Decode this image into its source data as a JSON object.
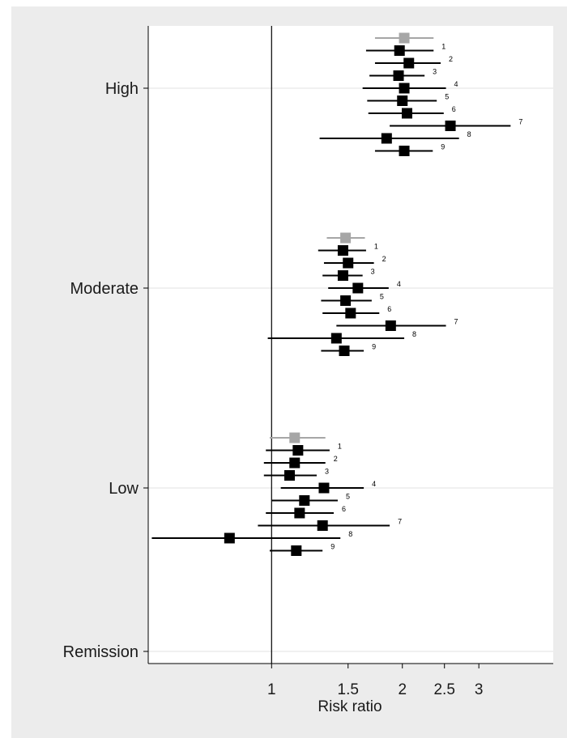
{
  "chart_data": {
    "type": "forest",
    "xlabel": "Risk ratio",
    "x_scale": "log",
    "xlim": [
      0.52,
      4.45
    ],
    "reference_line": 1,
    "x_ticks": [
      {
        "value": 1,
        "label": "1"
      },
      {
        "value": 1.5,
        "label": "1.5"
      },
      {
        "value": 2,
        "label": "2"
      },
      {
        "value": 2.5,
        "label": "2.5"
      },
      {
        "value": 3,
        "label": "3"
      }
    ],
    "categories": [
      "High",
      "Moderate",
      "Low",
      "Remission"
    ],
    "colors": {
      "pooled": "#a6a6a6",
      "study": "#000000"
    },
    "groups": [
      {
        "category": "High",
        "pooled": {
          "est": 2.02,
          "lo": 1.73,
          "hi": 2.36
        },
        "studies": [
          {
            "label": "1",
            "est": 1.97,
            "lo": 1.65,
            "hi": 2.36
          },
          {
            "label": "2",
            "est": 2.07,
            "lo": 1.73,
            "hi": 2.45
          },
          {
            "label": "3",
            "est": 1.96,
            "lo": 1.68,
            "hi": 2.25
          },
          {
            "label": "4",
            "est": 2.02,
            "lo": 1.62,
            "hi": 2.52
          },
          {
            "label": "5",
            "est": 2.0,
            "lo": 1.66,
            "hi": 2.4
          },
          {
            "label": "6",
            "est": 2.05,
            "lo": 1.67,
            "hi": 2.49
          },
          {
            "label": "7",
            "est": 2.58,
            "lo": 1.87,
            "hi": 3.55
          },
          {
            "label": "8",
            "est": 1.84,
            "lo": 1.29,
            "hi": 2.7
          },
          {
            "label": "9",
            "est": 2.02,
            "lo": 1.73,
            "hi": 2.35
          }
        ]
      },
      {
        "category": "Moderate",
        "pooled": {
          "est": 1.48,
          "lo": 1.34,
          "hi": 1.64
        },
        "studies": [
          {
            "label": "1",
            "est": 1.46,
            "lo": 1.28,
            "hi": 1.65
          },
          {
            "label": "2",
            "est": 1.5,
            "lo": 1.32,
            "hi": 1.72
          },
          {
            "label": "3",
            "est": 1.46,
            "lo": 1.31,
            "hi": 1.62
          },
          {
            "label": "4",
            "est": 1.58,
            "lo": 1.35,
            "hi": 1.86
          },
          {
            "label": "5",
            "est": 1.48,
            "lo": 1.3,
            "hi": 1.7
          },
          {
            "label": "6",
            "est": 1.52,
            "lo": 1.31,
            "hi": 1.77
          },
          {
            "label": "7",
            "est": 1.88,
            "lo": 1.41,
            "hi": 2.52
          },
          {
            "label": "8",
            "est": 1.41,
            "lo": 0.98,
            "hi": 2.02
          },
          {
            "label": "9",
            "est": 1.47,
            "lo": 1.3,
            "hi": 1.63
          }
        ]
      },
      {
        "category": "Low",
        "pooled": {
          "est": 1.13,
          "lo": 0.99,
          "hi": 1.33
        },
        "studies": [
          {
            "label": "1",
            "est": 1.15,
            "lo": 0.97,
            "hi": 1.36
          },
          {
            "label": "2",
            "est": 1.13,
            "lo": 0.96,
            "hi": 1.33
          },
          {
            "label": "3",
            "est": 1.1,
            "lo": 0.96,
            "hi": 1.27
          },
          {
            "label": "4",
            "est": 1.32,
            "lo": 1.05,
            "hi": 1.63
          },
          {
            "label": "5",
            "est": 1.19,
            "lo": 1.0,
            "hi": 1.42
          },
          {
            "label": "6",
            "est": 1.16,
            "lo": 0.97,
            "hi": 1.39
          },
          {
            "label": "7",
            "est": 1.31,
            "lo": 0.93,
            "hi": 1.87
          },
          {
            "label": "8",
            "est": 0.8,
            "lo": 0.53,
            "hi": 1.44
          },
          {
            "label": "9",
            "est": 1.14,
            "lo": 0.99,
            "hi": 1.31
          }
        ]
      }
    ],
    "grid": true
  }
}
